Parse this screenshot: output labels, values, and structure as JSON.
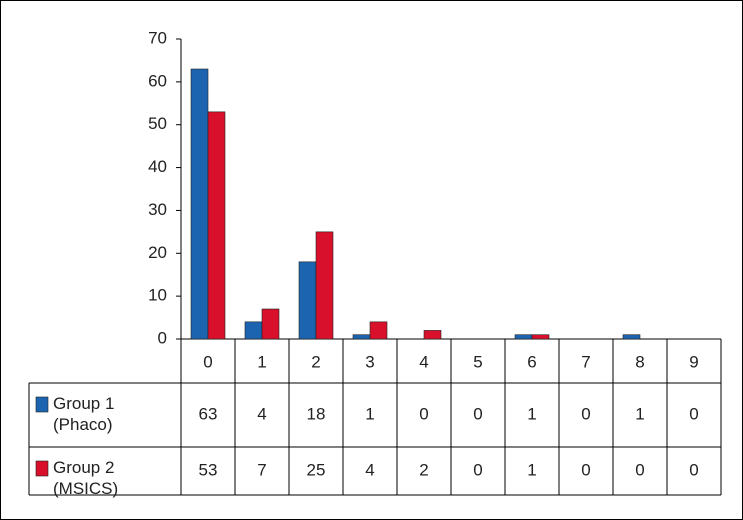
{
  "chart_data": {
    "type": "bar",
    "categories": [
      "0",
      "1",
      "2",
      "3",
      "4",
      "5",
      "6",
      "7",
      "8",
      "9"
    ],
    "series": [
      {
        "name": "Group 1 (Phaco)",
        "color": "#1c63b0",
        "values": [
          63,
          4,
          18,
          1,
          0,
          0,
          1,
          0,
          1,
          0
        ]
      },
      {
        "name": "Group 2 (MSICS)",
        "color": "#d8102c",
        "values": [
          53,
          7,
          25,
          4,
          2,
          0,
          1,
          0,
          0,
          0
        ]
      }
    ],
    "ylim": [
      0,
      70
    ],
    "yticks": [
      0,
      10,
      20,
      30,
      40,
      50,
      60,
      70
    ],
    "grid": false
  }
}
